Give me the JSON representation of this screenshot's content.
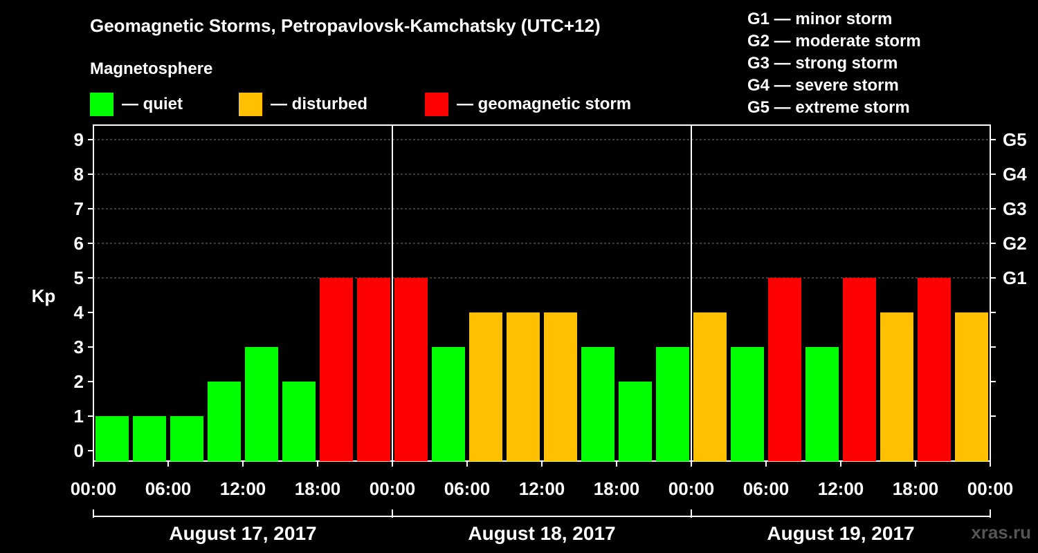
{
  "title": "Geomagnetic Storms, Petropavlovsk-Kamchatsky (UTC+12)",
  "subtitle": "Magnetosphere",
  "legend": [
    {
      "label": "— quiet",
      "color": "#00ff00"
    },
    {
      "label": "— disturbed",
      "color": "#ffc000"
    },
    {
      "label": "— geomagnetic storm",
      "color": "#ff0000"
    }
  ],
  "g_legend": [
    "G1 — minor storm",
    "G2 — moderate storm",
    "G3 — strong storm",
    "G4 — severe storm",
    "G5 — extreme storm"
  ],
  "watermark": "xras.ru",
  "chart_data": {
    "type": "bar",
    "title": "Geomagnetic Storms, Petropavlovsk-Kamchatsky (UTC+12)",
    "ylabel": "Kp",
    "ylim": [
      0,
      9
    ],
    "yticks": [
      0,
      1,
      2,
      3,
      4,
      5,
      6,
      7,
      8,
      9
    ],
    "right_axis": [
      {
        "kp": 5,
        "label": "G1"
      },
      {
        "kp": 6,
        "label": "G2"
      },
      {
        "kp": 7,
        "label": "G3"
      },
      {
        "kp": 8,
        "label": "G4"
      },
      {
        "kp": 9,
        "label": "G5"
      }
    ],
    "xtick_labels": [
      "00:00",
      "06:00",
      "12:00",
      "18:00",
      "00:00",
      "06:00",
      "12:00",
      "18:00",
      "00:00",
      "06:00",
      "12:00",
      "18:00",
      "00:00"
    ],
    "days": [
      "August 17, 2017",
      "August 18, 2017",
      "August 19, 2017"
    ],
    "interval_hours": 3,
    "values": [
      1,
      1,
      1,
      2,
      3,
      2,
      5,
      5,
      5,
      3,
      4,
      4,
      4,
      3,
      2,
      3,
      4,
      3,
      5,
      3,
      5,
      4,
      5,
      4
    ],
    "levels": [
      "quiet",
      "quiet",
      "quiet",
      "quiet",
      "quiet",
      "quiet",
      "storm",
      "storm",
      "storm",
      "quiet",
      "disturbed",
      "disturbed",
      "disturbed",
      "quiet",
      "quiet",
      "quiet",
      "disturbed",
      "quiet",
      "storm",
      "quiet",
      "storm",
      "disturbed",
      "storm",
      "disturbed"
    ],
    "level_colors": {
      "quiet": "#00ff00",
      "disturbed": "#ffc000",
      "storm": "#ff0000"
    },
    "grid": true
  }
}
